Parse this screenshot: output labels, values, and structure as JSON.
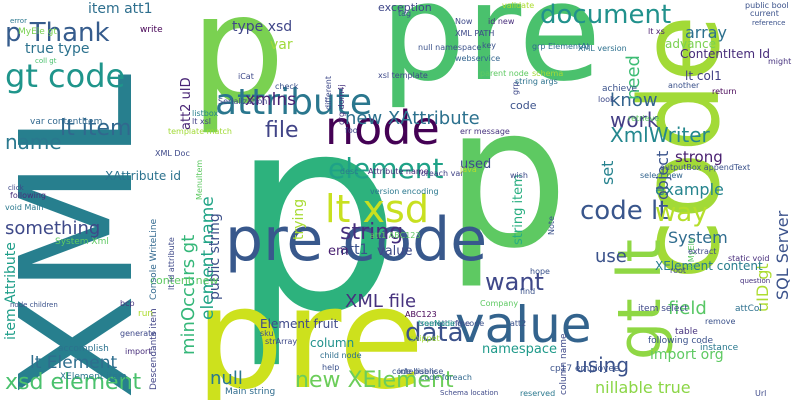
{
  "words": [
    {
      "text": "p",
      "color": "#7ad151"
    },
    {
      "text": "p",
      "color": "#2db27d"
    },
    {
      "text": "pre",
      "color": "#4ac16d"
    },
    {
      "text": "XML",
      "color": "#277f8e"
    },
    {
      "text": "pre",
      "color": "#cde11d"
    },
    {
      "text": "p",
      "color": "#5ec962"
    },
    {
      "text": "code",
      "color": "#a2da37"
    },
    {
      "text": "pre code",
      "color": "#38588c"
    },
    {
      "text": "gt lt",
      "color": "#8fd744"
    },
    {
      "text": "value",
      "color": "#33638d"
    },
    {
      "text": "node",
      "color": "#440154"
    },
    {
      "text": "lt xsd",
      "color": "#c8e020"
    },
    {
      "text": "attribute",
      "color": "#2a778e"
    },
    {
      "text": "gt code",
      "color": "#1f958b"
    },
    {
      "text": "p Thank",
      "color": "#365c8d"
    },
    {
      "text": "document",
      "color": "#21918c"
    },
    {
      "text": "XmlWriter",
      "color": "#24878e"
    },
    {
      "text": "element",
      "color": "#1fa287"
    },
    {
      "text": "new XAttribute",
      "color": "#2c718e"
    },
    {
      "text": "code lt",
      "color": "#39568c"
    },
    {
      "text": "string",
      "color": "#462f7e"
    },
    {
      "text": "want",
      "color": "#3f4889"
    },
    {
      "text": "data",
      "color": "#3b528b"
    },
    {
      "text": "new XElement",
      "color": "#6ccd5a"
    },
    {
      "text": "xsd element",
      "color": "#4ac16d"
    },
    {
      "text": "lt item",
      "color": "#31688e"
    },
    {
      "text": "lt Element",
      "color": "#2e6e8e"
    },
    {
      "text": "name",
      "color": "#2a788e"
    },
    {
      "text": "file",
      "color": "#414487"
    },
    {
      "text": "xmlns",
      "color": "#482173"
    },
    {
      "text": "true type",
      "color": "#2c728e"
    },
    {
      "text": "minOccurs gt",
      "color": "#35b779"
    },
    {
      "text": "element name",
      "color": "#20a486"
    },
    {
      "text": "something",
      "color": "#3e4989"
    },
    {
      "text": "item Attribute",
      "color": "#1f9e89"
    },
    {
      "text": "XML file",
      "color": "#46327e"
    },
    {
      "text": "nillable true",
      "color": "#8bd646"
    },
    {
      "text": "using",
      "color": "#3b528b"
    },
    {
      "text": "way",
      "color": "#b5de2b"
    },
    {
      "text": "example",
      "color": "#25848e"
    },
    {
      "text": "strong",
      "color": "#481f70"
    },
    {
      "text": "set",
      "color": "#26828e"
    },
    {
      "text": "know",
      "color": "#33638d"
    },
    {
      "text": "work",
      "color": "#433e85"
    },
    {
      "text": "need",
      "color": "#3dbc74"
    },
    {
      "text": "array",
      "color": "#2d708e"
    },
    {
      "text": "var",
      "color": "#9fda3a"
    },
    {
      "text": "type xsd",
      "color": "#404688"
    },
    {
      "text": "item att1",
      "color": "#2e6f8e"
    },
    {
      "text": "use",
      "color": "#3b528b"
    },
    {
      "text": "field",
      "color": "#58c765"
    },
    {
      "text": "object",
      "color": "#3a538b"
    },
    {
      "text": "namespace",
      "color": "#1f9a8a"
    },
    {
      "text": "public string",
      "color": "#3c4f8a"
    },
    {
      "text": "string item",
      "color": "#28ae80"
    },
    {
      "text": "uID gt",
      "color": "#addc30"
    },
    {
      "text": "SQL Server",
      "color": "#3b528b"
    },
    {
      "text": "trying",
      "color": "#a8db34"
    },
    {
      "text": "System",
      "color": "#2f6c8e"
    },
    {
      "text": "XElement content",
      "color": "#287d8e"
    },
    {
      "text": "column",
      "color": "#21918c"
    },
    {
      "text": "null",
      "color": "#2a788e"
    },
    {
      "text": "used",
      "color": "#3e4a89"
    },
    {
      "text": "code",
      "color": "#3b528b"
    },
    {
      "text": "ContentItem Id",
      "color": "#472c7a"
    },
    {
      "text": "advance",
      "color": "#7ad151"
    },
    {
      "text": "lt col1",
      "color": "#424086"
    },
    {
      "text": "content new",
      "color": "#5ec962"
    },
    {
      "text": "Element fruit",
      "color": "#3e4989"
    },
    {
      "text": "att1",
      "color": "#3b528b"
    },
    {
      "text": "value",
      "color": "#3e4989"
    },
    {
      "text": "em",
      "color": "#481f70"
    },
    {
      "text": "att2 uID",
      "color": "#482475"
    },
    {
      "text": "XAttribute id",
      "color": "#2c728e"
    },
    {
      "text": "exception",
      "color": "#3f4788"
    },
    {
      "text": "XML PATH",
      "color": "#3e4989"
    },
    {
      "text": "webservice",
      "color": "#32648e"
    },
    {
      "text": "XML version",
      "color": "#2d708e"
    },
    {
      "text": "grp ElementAt",
      "color": "#2e6e8e"
    },
    {
      "text": "lt xs",
      "color": "#481c6e"
    },
    {
      "text": "public bool",
      "color": "#3b528b"
    },
    {
      "text": "current",
      "color": "#3b528b"
    },
    {
      "text": "might",
      "color": "#46327e"
    },
    {
      "text": "MyEle gt",
      "color": "#7ad151"
    },
    {
      "text": "var contentItem",
      "color": "#31688e"
    },
    {
      "text": "coll gt",
      "color": "#4ac16d"
    },
    {
      "text": "write",
      "color": "#440154"
    },
    {
      "text": "iCat",
      "color": "#3e4989"
    },
    {
      "text": "check",
      "color": "#3b528b"
    },
    {
      "text": "Serialization",
      "color": "#3f4788"
    },
    {
      "text": "listbox",
      "color": "#26828e"
    },
    {
      "text": "lt xsl",
      "color": "#424086"
    },
    {
      "text": "XML Doc",
      "color": "#3e4989"
    },
    {
      "text": "void Main",
      "color": "#2a788e"
    },
    {
      "text": "following",
      "color": "#472d7b"
    },
    {
      "text": "System Xml",
      "color": "#5ec962"
    },
    {
      "text": "Console WriteLine",
      "color": "#31688e"
    },
    {
      "text": "accomplish",
      "color": "#2c728e"
    },
    {
      "text": "XElement item",
      "color": "#2a788e"
    },
    {
      "text": "Descendants item",
      "color": "#414487"
    },
    {
      "text": "Main string",
      "color": "#2f6c8e"
    },
    {
      "text": "generate",
      "color": "#3e4989"
    },
    {
      "text": "import",
      "color": "#472d7b"
    },
    {
      "text": "run",
      "color": "#addc30"
    },
    {
      "text": "bcp",
      "color": "#46327e"
    },
    {
      "text": "sku",
      "color": "#3b528b"
    },
    {
      "text": "strArray",
      "color": "#3e4989"
    },
    {
      "text": "child node",
      "color": "#2e6e8e"
    },
    {
      "text": "help",
      "color": "#3b528b"
    },
    {
      "text": "code foreach",
      "color": "#31688e"
    },
    {
      "text": "code public",
      "color": "#39568c"
    },
    {
      "text": "something code",
      "color": "#3b528b"
    },
    {
      "text": "ABC123",
      "color": "#440154"
    },
    {
      "text": "att2",
      "color": "#3b528b"
    },
    {
      "text": "fine",
      "color": "#3e4989"
    },
    {
      "text": "snippet",
      "color": "#a2da37"
    },
    {
      "text": "treeNode",
      "color": "#1f9a8a"
    },
    {
      "text": "Company",
      "color": "#5ec962"
    },
    {
      "text": "foreach var",
      "color": "#414487"
    },
    {
      "text": "desc",
      "color": "#2a788e"
    },
    {
      "text": "err message",
      "color": "#46327e"
    },
    {
      "text": "foo",
      "color": "#3e4989"
    },
    {
      "text": "Attribute name",
      "color": "#472d7b"
    },
    {
      "text": "version encoding",
      "color": "#2a788e"
    },
    {
      "text": "Note",
      "color": "#3b528b"
    },
    {
      "text": "java",
      "color": "#b5de2b"
    },
    {
      "text": "wish",
      "color": "#3e4989"
    },
    {
      "text": "hope",
      "color": "#3b528b"
    },
    {
      "text": "root",
      "color": "#3f4788"
    },
    {
      "text": "static void",
      "color": "#472d7b"
    },
    {
      "text": "outputBox appendText",
      "color": "#3b528b"
    },
    {
      "text": "select new",
      "color": "#32648e"
    },
    {
      "text": "lt MyEle",
      "color": "#5ec962"
    },
    {
      "text": "extract",
      "color": "#3e4989"
    },
    {
      "text": "question",
      "color": "#46327e"
    },
    {
      "text": "attCol",
      "color": "#2d708e"
    },
    {
      "text": "remove",
      "color": "#3b528b"
    },
    {
      "text": "item select",
      "color": "#3e4989"
    },
    {
      "text": "import org",
      "color": "#5ec962"
    },
    {
      "text": "following code",
      "color": "#3b528b"
    },
    {
      "text": "instance",
      "color": "#2a788e"
    },
    {
      "text": "Url",
      "color": "#3e4989"
    },
    {
      "text": "table",
      "color": "#46327e"
    },
    {
      "text": "reserved",
      "color": "#2a788e"
    },
    {
      "text": "cp17 employee",
      "color": "#3b528b"
    },
    {
      "text": "column name",
      "color": "#3e4989"
    },
    {
      "text": "find",
      "color": "#3b528b"
    },
    {
      "text": "look",
      "color": "#3e4989"
    },
    {
      "text": "return",
      "color": "#440154"
    },
    {
      "text": "string args",
      "color": "#2c728e"
    },
    {
      "text": "schema",
      "color": "#a2da37"
    },
    {
      "text": "parent node",
      "color": "#5ec962"
    },
    {
      "text": "xsl template",
      "color": "#3e4989"
    },
    {
      "text": "null namespace",
      "color": "#3b528b"
    },
    {
      "text": "different",
      "color": "#3e4989"
    },
    {
      "text": "org dom4j",
      "color": "#46327e"
    },
    {
      "text": "tag",
      "color": "#3b528b"
    },
    {
      "text": "Now",
      "color": "#3e4989"
    },
    {
      "text": "id new",
      "color": "#472d7b"
    },
    {
      "text": "key",
      "color": "#3b528b"
    },
    {
      "text": "validate",
      "color": "#addc30"
    },
    {
      "text": "achieve",
      "color": "#3b528b"
    },
    {
      "text": "retrieve",
      "color": "#5ec962"
    },
    {
      "text": "grp",
      "color": "#3e4989"
    },
    {
      "text": "another",
      "color": "#3b528b"
    },
    {
      "text": "error",
      "color": "#2a788e"
    },
    {
      "text": "MenuItem",
      "color": "#5ec962"
    },
    {
      "text": "template match",
      "color": "#a2da37"
    },
    {
      "text": "lt Id attribute",
      "color": "#3e4989"
    },
    {
      "text": "att1 ABC123",
      "color": "#5ec962"
    },
    {
      "text": "intellisense",
      "color": "#3b528b"
    },
    {
      "text": "Schema location",
      "color": "#3e4989"
    },
    {
      "text": "node children",
      "color": "#3b528b"
    },
    {
      "text": "click",
      "color": "#3e4989"
    },
    {
      "text": "reference",
      "color": "#3b528b"
    }
  ]
}
